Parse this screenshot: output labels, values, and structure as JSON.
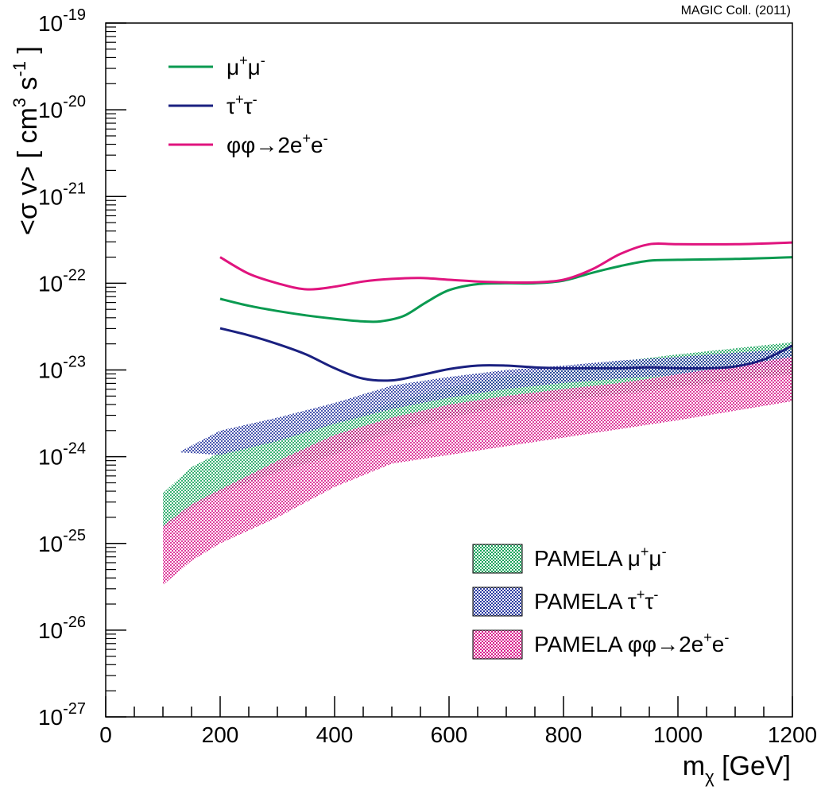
{
  "chart_data": {
    "type": "line",
    "credit": "MAGIC Coll. (2011)",
    "xlabel": {
      "base": "m",
      "sub": "χ",
      "rest": " [GeV]"
    },
    "ylabel": "<σ v> [ cm³ s⁻¹ ]",
    "ylabel_parts": {
      "pre": "<σ v> [ cm",
      "sup1": "3",
      "mid": " s",
      "sup2": "-1",
      "post": " ]"
    },
    "xlim": [
      0,
      1200
    ],
    "ylim_log10": [
      -27,
      -19
    ],
    "y_scale": "log",
    "x_ticks": [
      0,
      200,
      400,
      600,
      800,
      1000,
      1200
    ],
    "x_tick_labels": [
      "0",
      "200",
      "400",
      "600",
      "800",
      "1000",
      "1200"
    ],
    "y_ticks_log10": [
      -27,
      -26,
      -25,
      -24,
      -23,
      -22,
      -21,
      -20,
      -19
    ],
    "y_tick_labels": [
      {
        "base": "10",
        "exp": "-27"
      },
      {
        "base": "10",
        "exp": "-26"
      },
      {
        "base": "10",
        "exp": "-25"
      },
      {
        "base": "10",
        "exp": "-24"
      },
      {
        "base": "10",
        "exp": "-23"
      },
      {
        "base": "10",
        "exp": "-22"
      },
      {
        "base": "10",
        "exp": "-21"
      },
      {
        "base": "10",
        "exp": "-20"
      },
      {
        "base": "10",
        "exp": "-19"
      }
    ],
    "series": [
      {
        "name": "μ⁺μ⁻",
        "label_parts": {
          "a": "μ",
          "sa": "+",
          "b": "μ",
          "sb": "-"
        },
        "color": "#0a9a50",
        "x": [
          200,
          250,
          300,
          350,
          400,
          450,
          480,
          520,
          560,
          600,
          650,
          700,
          750,
          800,
          850,
          900,
          950,
          1000,
          1100,
          1200
        ],
        "log10_y": [
          -22.18,
          -22.26,
          -22.32,
          -22.37,
          -22.41,
          -22.44,
          -22.44,
          -22.38,
          -22.22,
          -22.08,
          -22.01,
          -22.0,
          -22.0,
          -21.97,
          -21.88,
          -21.8,
          -21.74,
          -21.73,
          -21.72,
          -21.7
        ]
      },
      {
        "name": "τ⁺τ⁻",
        "label_parts": {
          "a": "τ",
          "sa": "+",
          "b": "τ",
          "sb": "-"
        },
        "color": "#1a2080",
        "x": [
          200,
          250,
          300,
          350,
          400,
          450,
          500,
          550,
          600,
          650,
          700,
          750,
          800,
          850,
          900,
          950,
          1000,
          1050,
          1100,
          1150,
          1200
        ],
        "log10_y": [
          -22.52,
          -22.6,
          -22.7,
          -22.82,
          -22.98,
          -23.1,
          -23.12,
          -23.06,
          -22.99,
          -22.95,
          -22.95,
          -22.97,
          -22.98,
          -22.98,
          -22.98,
          -22.97,
          -22.98,
          -22.98,
          -22.96,
          -22.88,
          -22.72
        ]
      },
      {
        "name": "φφ→2e⁺e⁻",
        "label_parts": {
          "a": "φφ→2e",
          "sa": "+",
          "b": "e",
          "sb": "-"
        },
        "color": "#e0147e",
        "x": [
          200,
          250,
          300,
          350,
          400,
          450,
          500,
          550,
          600,
          650,
          700,
          750,
          800,
          850,
          900,
          950,
          1000,
          1100,
          1200
        ],
        "log10_y": [
          -21.7,
          -21.89,
          -22.0,
          -22.07,
          -22.04,
          -21.98,
          -21.95,
          -21.94,
          -21.96,
          -21.98,
          -21.99,
          -21.99,
          -21.96,
          -21.84,
          -21.66,
          -21.55,
          -21.55,
          -21.55,
          -21.53
        ]
      }
    ],
    "bands": [
      {
        "name": "PAMELA μ⁺μ⁻",
        "label_parts": {
          "pre": "PAMELA ",
          "a": "μ",
          "sa": "+",
          "b": "μ",
          "sb": "-"
        },
        "color": "#18a35c",
        "x": [
          100,
          150,
          200,
          300,
          400,
          500,
          600,
          700,
          800,
          900,
          1000,
          1100,
          1200
        ],
        "log10_upper": [
          -24.42,
          -24.12,
          -23.95,
          -23.8,
          -23.6,
          -23.38,
          -23.2,
          -23.07,
          -22.98,
          -22.9,
          -22.82,
          -22.75,
          -22.68
        ],
        "log10_lower": [
          -24.82,
          -24.6,
          -24.42,
          -24.18,
          -23.98,
          -23.72,
          -23.55,
          -23.42,
          -23.35,
          -23.28,
          -23.2,
          -23.12,
          -23.05
        ]
      },
      {
        "name": "PAMELA τ⁺τ⁻",
        "label_parts": {
          "pre": "PAMELA ",
          "a": "τ",
          "sa": "+",
          "b": "τ",
          "sb": "-"
        },
        "color": "#2a3aa0",
        "x": [
          130,
          200,
          300,
          400,
          500,
          600,
          700,
          800,
          900,
          1000,
          1100,
          1200
        ],
        "log10_upper": [
          -23.94,
          -23.7,
          -23.55,
          -23.38,
          -23.18,
          -23.08,
          -23.0,
          -22.95,
          -22.89,
          -22.85,
          -22.8,
          -22.76
        ],
        "log10_lower": [
          -23.95,
          -23.98,
          -23.82,
          -23.62,
          -23.45,
          -23.32,
          -23.22,
          -23.15,
          -23.1,
          -23.06,
          -23.0,
          -22.95
        ]
      },
      {
        "name": "PAMELA φφ→2e⁺e⁻",
        "label_parts": {
          "pre": "PAMELA ",
          "a": "φφ→2e",
          "sa": "+",
          "b": "e",
          "sb": "-"
        },
        "color": "#d81c8c",
        "x": [
          100,
          150,
          200,
          300,
          400,
          500,
          600,
          700,
          800,
          900,
          1000,
          1100,
          1200
        ],
        "log10_upper": [
          -24.8,
          -24.55,
          -24.38,
          -24.05,
          -23.75,
          -23.55,
          -23.4,
          -23.3,
          -23.22,
          -23.15,
          -23.05,
          -22.95,
          -22.85
        ],
        "log10_lower": [
          -25.48,
          -25.2,
          -25.0,
          -24.7,
          -24.35,
          -24.08,
          -23.98,
          -23.88,
          -23.78,
          -23.68,
          -23.58,
          -23.47,
          -23.36
        ]
      }
    ],
    "legend_lines_position": "top-left",
    "legend_bands_position": "bottom-right",
    "grid": false
  }
}
